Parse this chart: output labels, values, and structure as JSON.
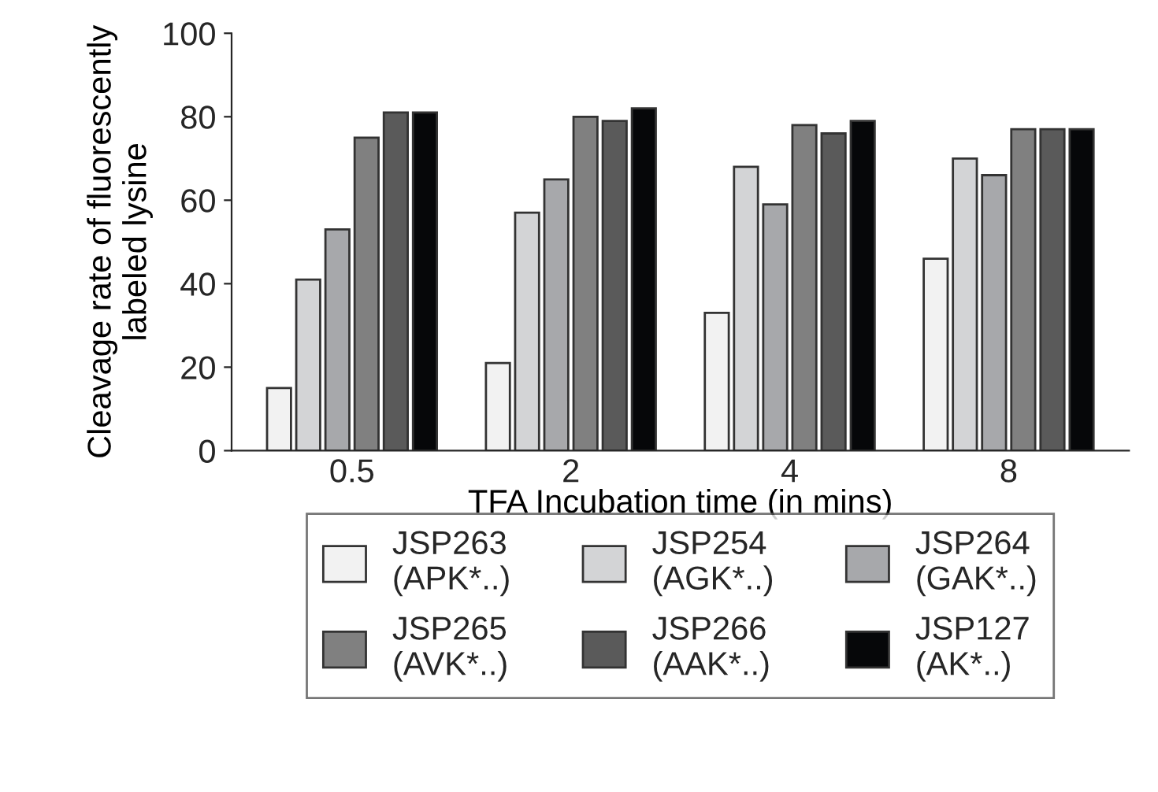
{
  "chart_data": {
    "type": "bar",
    "xlabel": "TFA Incubation time (in mins)",
    "ylabel": "Cleavage rate of fluorescently\nlabeled lysine",
    "categories": [
      "0.5",
      "2",
      "4",
      "8"
    ],
    "series": [
      {
        "name": "JSP263\n(APK*..)",
        "color": "#f2f2f2",
        "values": [
          15,
          21,
          33,
          46
        ]
      },
      {
        "name": "JSP254\n(AGK*..)",
        "color": "#d3d4d6",
        "values": [
          41,
          57,
          68,
          70
        ]
      },
      {
        "name": "JSP264\n(GAK*..)",
        "color": "#a7a8ab",
        "values": [
          53,
          65,
          59,
          66
        ]
      },
      {
        "name": "JSP265\n(AVK*..)",
        "color": "#808080",
        "values": [
          75,
          80,
          78,
          77
        ]
      },
      {
        "name": "JSP266\n(AAK*..)",
        "color": "#5a5a5a",
        "values": [
          81,
          79,
          76,
          77
        ]
      },
      {
        "name": "JSP127\n(AK*..)",
        "color": "#060709",
        "values": [
          81,
          82,
          79,
          77
        ]
      }
    ],
    "ylim": [
      0,
      100
    ],
    "yticks": [
      0,
      20,
      40,
      60,
      80,
      100
    ],
    "legend": "bottom",
    "grid": false
  }
}
